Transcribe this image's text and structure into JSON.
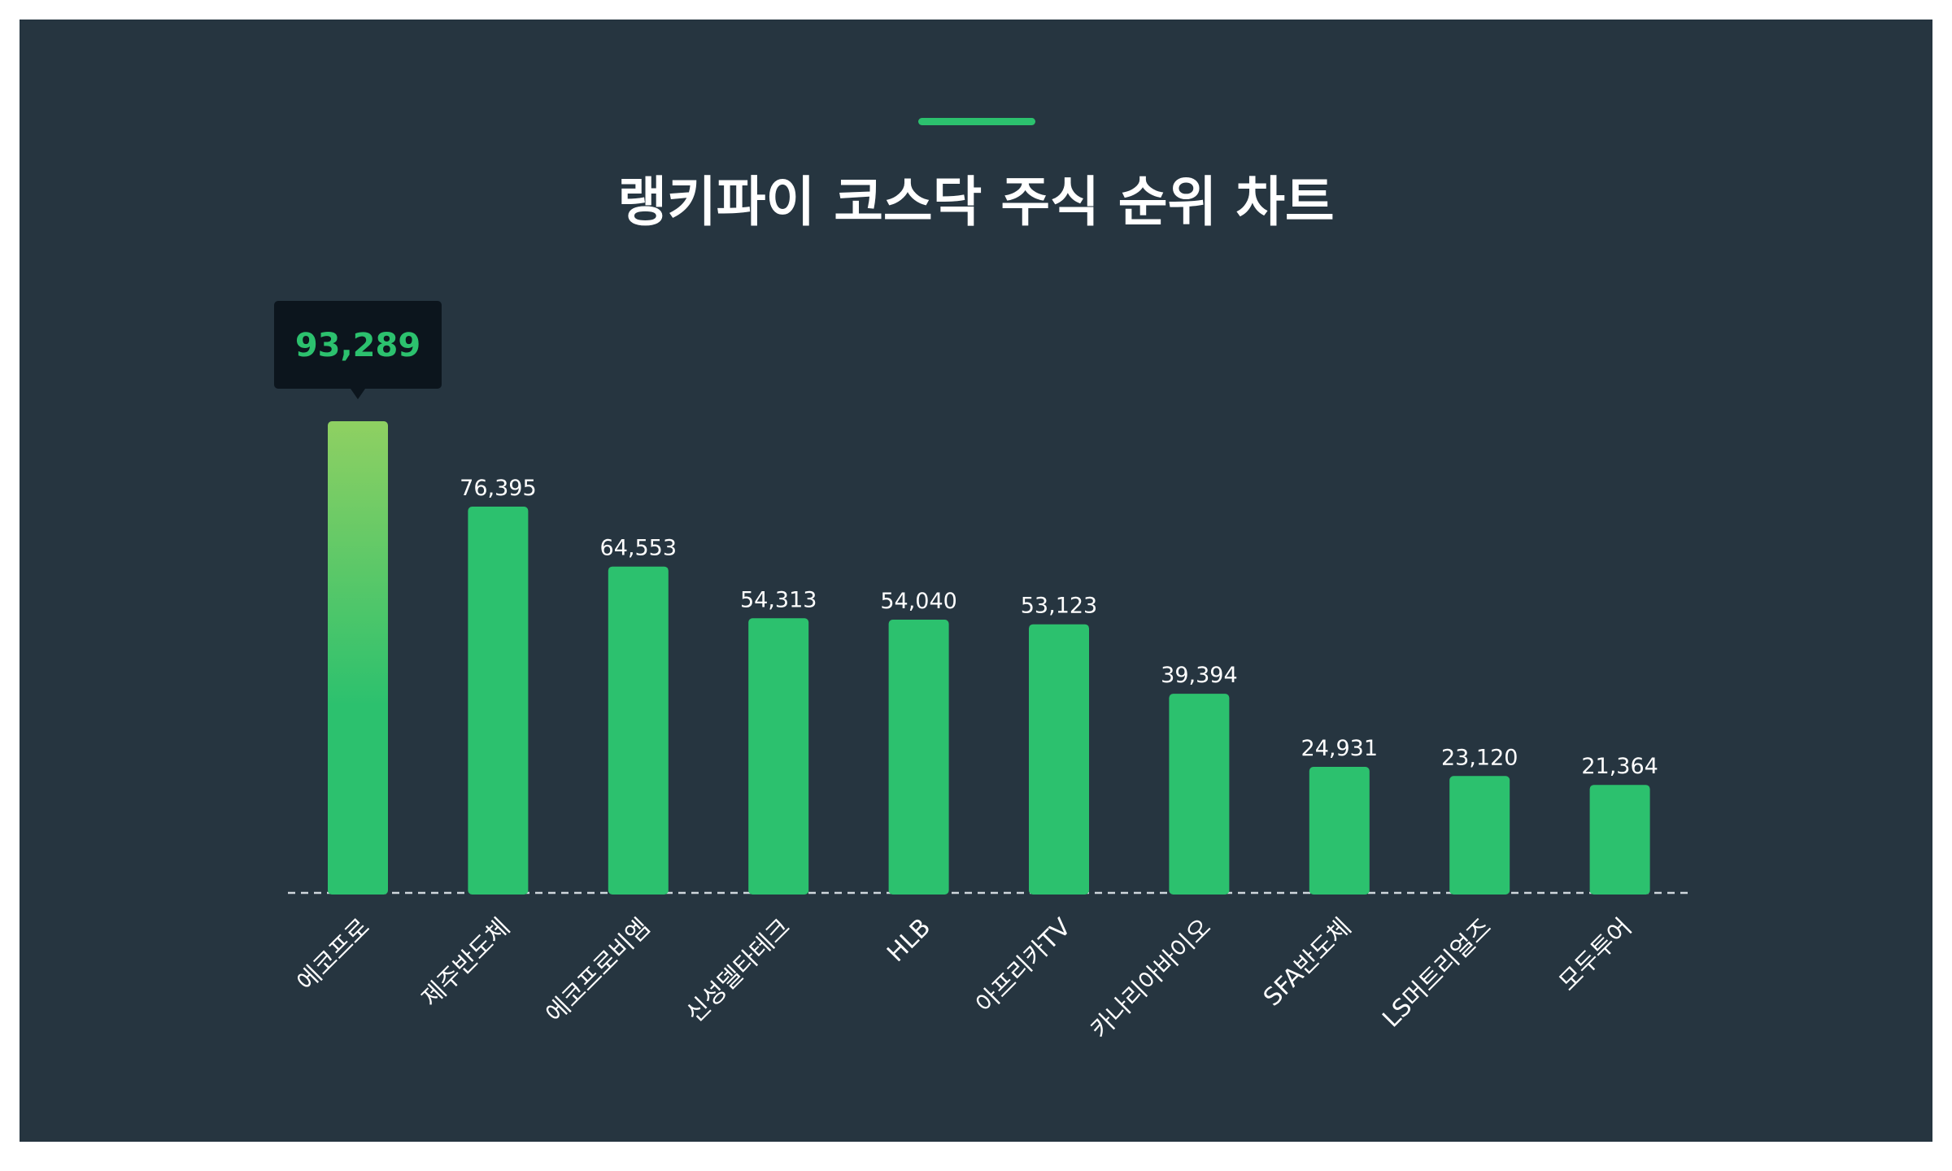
{
  "title": "랭키파이 코스닥 주식 순위 차트",
  "colors": {
    "background": "#263540",
    "bar": "#2cc16e",
    "highlight_top": "#8fd062",
    "tooltip_bg": "#0c151d",
    "tooltip_text": "#2cc16e",
    "baseline": "#cfd6dc",
    "text": "#ffffff"
  },
  "chart_data": {
    "type": "bar",
    "title": "랭키파이 코스닥 주식 순위 차트",
    "categories": [
      "에코프로",
      "제주반도체",
      "에코프로비엠",
      "신성델타테크",
      "HLB",
      "아프리카TV",
      "카나리아바이오",
      "SFA반도체",
      "LS머트리얼즈",
      "모두투어"
    ],
    "values": [
      93289,
      76395,
      64553,
      54313,
      54040,
      53123,
      39394,
      24931,
      23120,
      21364
    ],
    "value_labels": [
      "93,289",
      "76,395",
      "64,553",
      "54,313",
      "54,040",
      "53,123",
      "39,394",
      "24,931",
      "23,120",
      "21,364"
    ],
    "highlighted_index": 0,
    "xlabel": "",
    "ylabel": "",
    "ylim": [
      0,
      93289
    ],
    "grid": false,
    "legend": "none"
  }
}
